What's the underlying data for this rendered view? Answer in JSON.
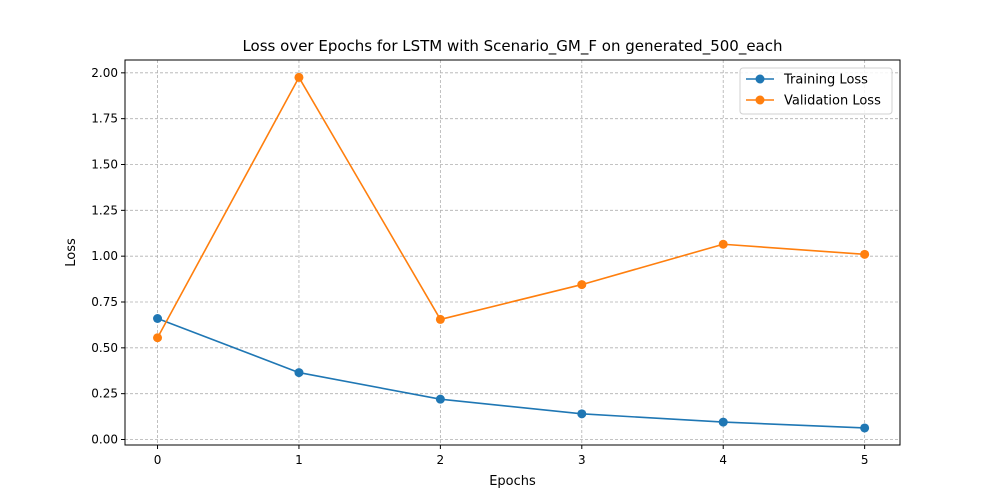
{
  "chart_data": {
    "type": "line",
    "title": "Loss over Epochs for LSTM with Scenario_GM_F on generated_500_each",
    "xlabel": "Epochs",
    "ylabel": "Loss",
    "x": [
      0,
      1,
      2,
      3,
      4,
      5
    ],
    "x_tick_labels": [
      "0",
      "1",
      "2",
      "3",
      "4",
      "5"
    ],
    "y_ticks": [
      0.0,
      0.25,
      0.5,
      0.75,
      1.0,
      1.25,
      1.5,
      1.75,
      2.0
    ],
    "y_tick_labels": [
      "0.00",
      "0.25",
      "0.50",
      "0.75",
      "1.00",
      "1.25",
      "1.50",
      "1.75",
      "2.00"
    ],
    "xlim": [
      -0.23,
      5.25
    ],
    "ylim": [
      -0.03,
      2.07
    ],
    "grid": true,
    "legend_position": "top-right",
    "series": [
      {
        "name": "Training Loss",
        "color": "#1f77b4",
        "values": [
          0.66,
          0.365,
          0.22,
          0.14,
          0.095,
          0.063
        ]
      },
      {
        "name": "Validation Loss",
        "color": "#ff7f0e",
        "values": [
          0.555,
          1.975,
          0.655,
          0.845,
          1.065,
          1.01
        ]
      }
    ]
  }
}
